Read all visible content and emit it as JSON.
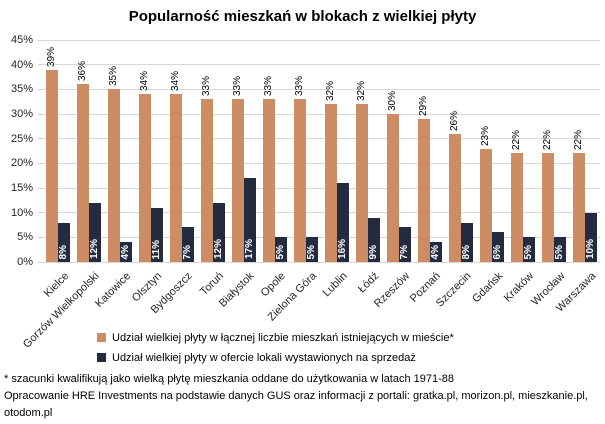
{
  "title": "Popularność mieszkań w blokach z wielkiej płyty",
  "colors": {
    "series_existing": "#CD8C63",
    "series_for_sale": "#232B41",
    "gridline": "#D9D9D9",
    "axis_text": "#262626"
  },
  "chart_data": {
    "type": "bar",
    "title": "Popularność mieszkań w blokach z wielkiej płyty",
    "categories": [
      "Kielce",
      "Gorzów Wielkopolski",
      "Katowice",
      "Olsztyn",
      "Bydgoszcz",
      "Toruń",
      "Białystok",
      "Opole",
      "Zielona Góra",
      "Lublin",
      "Łódź",
      "Rzeszów",
      "Poznań",
      "Szczecin",
      "Gdańsk",
      "Kraków",
      "Wrocław",
      "Warszawa"
    ],
    "series": [
      {
        "name": "Udział wielkiej płyty w łącznej liczbie mieszkań istniejących w mieście*",
        "color": "#CD8C63",
        "values": [
          39,
          36,
          35,
          34,
          34,
          33,
          33,
          33,
          33,
          32,
          32,
          30,
          29,
          26,
          23,
          22,
          22,
          22
        ]
      },
      {
        "name": "Udział wielkiej płyty w ofercie lokali wystawionych na sprzedaż",
        "color": "#232B41",
        "values": [
          8,
          12,
          4,
          11,
          7,
          12,
          17,
          5,
          5,
          16,
          9,
          7,
          4,
          8,
          6,
          5,
          5,
          10
        ]
      }
    ],
    "xlabel": "",
    "ylabel": "",
    "ylim": [
      0,
      45
    ],
    "ytick_step": 5,
    "ytick_labels": [
      "0%",
      "5%",
      "10%",
      "15%",
      "20%",
      "25%",
      "30%",
      "35%",
      "40%",
      "45%"
    ],
    "grid": true,
    "legend_position": "bottom",
    "data_label_format": "{v}%"
  },
  "footnotes": {
    "line1": "* szacunki kwalifikują jako wielką płytę mieszkania oddane do użytkowania w latach 1971-88",
    "line2": "Opracowanie HRE Investments na podstawie danych GUS oraz informacji z portali: gratka.pl, morizon.pl, mieszkanie.pl, otodom.pl"
  }
}
